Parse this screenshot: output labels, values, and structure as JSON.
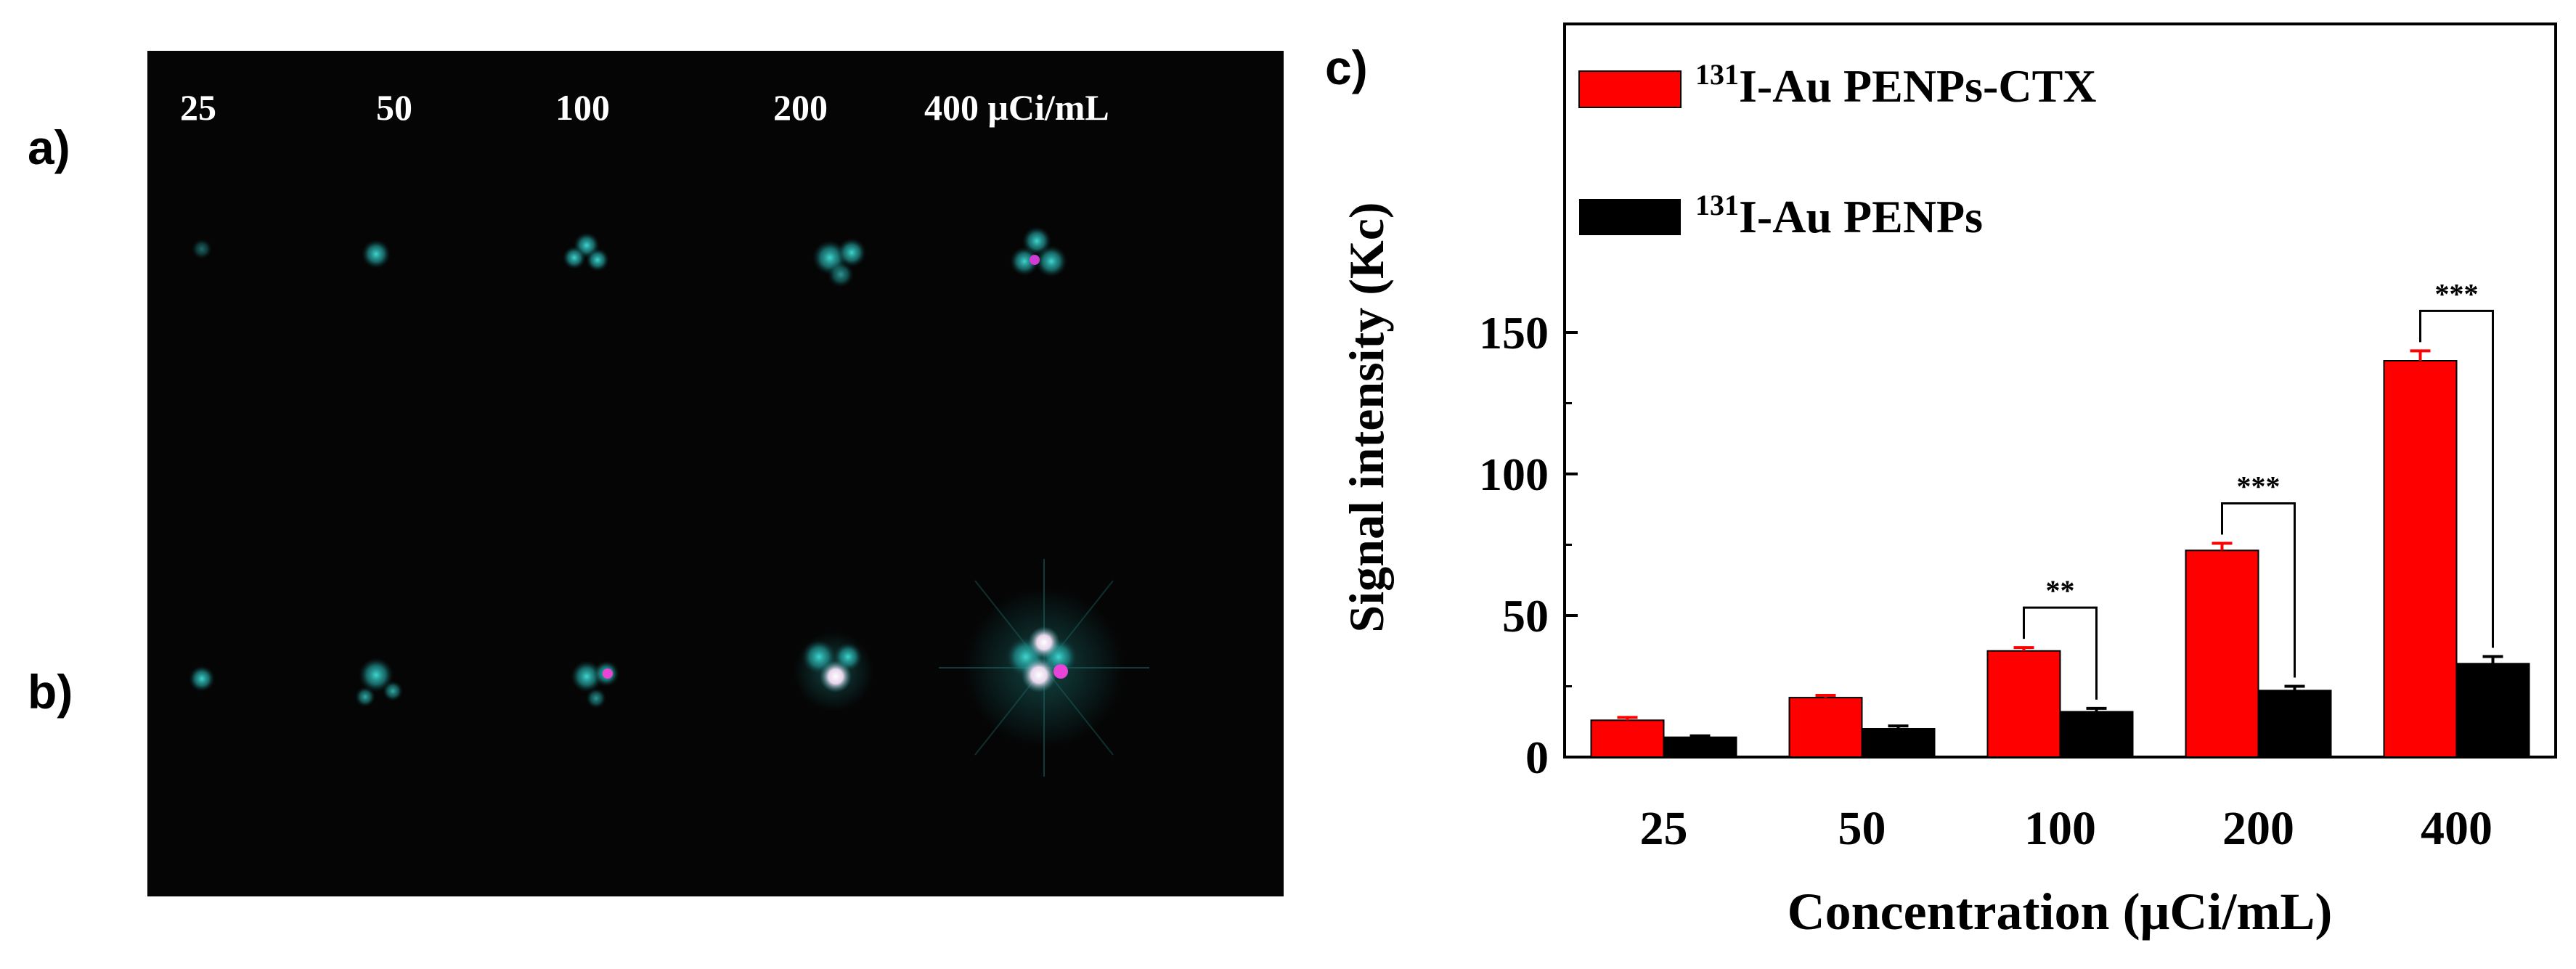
{
  "panels": {
    "a_label": "a)",
    "b_label": "b)",
    "c_label": "c)"
  },
  "image_panel": {
    "concentration_labels": [
      "25",
      "50",
      "100",
      "200",
      "400 μCi/mL"
    ]
  },
  "colors": {
    "ctx_series": "#ff0000",
    "penp_series": "#000000",
    "image_background": "#050505",
    "spot_cyan": "#2ab7b4"
  },
  "chart_data": {
    "type": "bar",
    "categories": [
      "25",
      "50",
      "100",
      "200",
      "400"
    ],
    "series": [
      {
        "name": "131I-Au PENPs-CTX",
        "values": [
          13,
          21,
          37.5,
          73,
          140
        ],
        "errors": [
          1,
          0.8,
          1.2,
          2.5,
          3.5
        ]
      },
      {
        "name": "131I-Au PENPs",
        "values": [
          7,
          10,
          16,
          23.5,
          33
        ],
        "errors": [
          0.5,
          1,
          1.2,
          1.5,
          2.5
        ]
      }
    ],
    "legend_labels": [
      {
        "sup": "131",
        "text": "I-Au PENPs-CTX"
      },
      {
        "sup": "131",
        "text": "I-Au PENPs"
      }
    ],
    "ylabel": "Signal intensity (Kc)",
    "xlabel": "Concentration (μCi/mL)",
    "ylim": [
      0,
      150
    ],
    "yticks": [
      "0",
      "50",
      "100",
      "150"
    ],
    "legend_position": "top-left",
    "significance": [
      {
        "category": "100",
        "label": "**"
      },
      {
        "category": "200",
        "label": "***"
      },
      {
        "category": "400",
        "label": "***"
      }
    ]
  }
}
